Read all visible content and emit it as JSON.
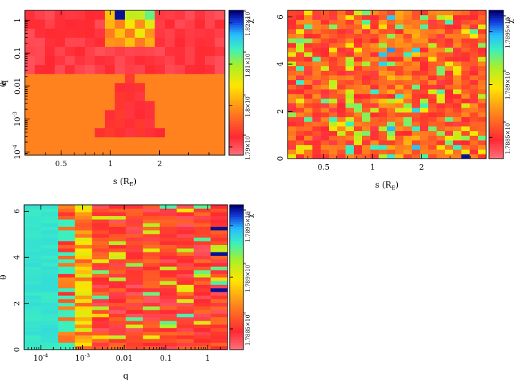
{
  "chart_data": [
    {
      "type": "heatmap",
      "id": "q_vs_s",
      "xlabel": "s (R_E)",
      "ylabel": "q",
      "xscale": "log",
      "yscale": "log",
      "xlim": [
        0.3,
        5.0
      ],
      "ylim": [
        8e-05,
        2.0
      ],
      "xticks": [
        {
          "v": 0.5,
          "label": "0.5"
        },
        {
          "v": 1,
          "label": "1"
        },
        {
          "v": 2,
          "label": "2"
        }
      ],
      "yticks": [
        {
          "v": 1,
          "label": "1"
        },
        {
          "v": 0.1,
          "label": "0.1"
        },
        {
          "v": 0.01,
          "label": "0.01"
        },
        {
          "v": 0.001,
          "label": "10^-3"
        },
        {
          "v": 0.0001,
          "label": "10^-4"
        }
      ],
      "cols": 20,
      "rows": 16,
      "colorbar": {
        "label": "χ²",
        "min": 178800000.0,
        "max": 182300000.0,
        "ticks": [
          {
            "v": 179000000.0,
            "label": "1.79×10^8"
          },
          {
            "v": 180000000.0,
            "label": "1.8×10^8"
          },
          {
            "v": 181000000.0,
            "label": "1.81×10^8"
          },
          {
            "v": 182000000.0,
            "label": "1.82×10^8"
          }
        ]
      }
    },
    {
      "type": "heatmap",
      "id": "theta_vs_s",
      "xlabel": "s (R_E)",
      "ylabel": "θ",
      "xscale": "log",
      "yscale": "linear",
      "xlim": [
        0.3,
        5.0
      ],
      "ylim": [
        0,
        6.28
      ],
      "xticks": [
        {
          "v": 0.5,
          "label": "0.5"
        },
        {
          "v": 1,
          "label": "1"
        },
        {
          "v": 2,
          "label": "2"
        }
      ],
      "yticks": [
        {
          "v": 0,
          "label": "0"
        },
        {
          "v": 2,
          "label": "2"
        },
        {
          "v": 4,
          "label": "4"
        },
        {
          "v": 6,
          "label": "6"
        }
      ],
      "cols": 24,
      "rows": 32,
      "colorbar": {
        "label": "χ²",
        "min": 178830000.0,
        "max": 178970000.0,
        "ticks": [
          {
            "v": 178850000.0,
            "label": "1.7885×10^8"
          },
          {
            "v": 178900000.0,
            "label": "1.789×10^8"
          },
          {
            "v": 178950000.0,
            "label": "1.7895×10^8"
          }
        ]
      }
    },
    {
      "type": "heatmap",
      "id": "theta_vs_q",
      "xlabel": "q",
      "ylabel": "θ",
      "xscale": "log",
      "yscale": "linear",
      "xlim": [
        4e-05,
        3.0
      ],
      "ylim": [
        0,
        6.28
      ],
      "xticks": [
        {
          "v": 0.0001,
          "label": "10^-4"
        },
        {
          "v": 0.001,
          "label": "10^-3"
        },
        {
          "v": 0.01,
          "label": "0.01"
        },
        {
          "v": 0.1,
          "label": "0.1"
        },
        {
          "v": 1,
          "label": "1"
        }
      ],
      "yticks": [
        {
          "v": 0,
          "label": "0"
        },
        {
          "v": 2,
          "label": "2"
        },
        {
          "v": 4,
          "label": "4"
        },
        {
          "v": 6,
          "label": "6"
        }
      ],
      "cols": 12,
      "rows": 40,
      "colorbar": {
        "label": "χ²",
        "min": 178830000.0,
        "max": 178970000.0,
        "ticks": [
          {
            "v": 178850000.0,
            "label": "1.7885×10^8"
          },
          {
            "v": 178900000.0,
            "label": "1.789×10^8"
          },
          {
            "v": 178950000.0,
            "label": "1.7895×10^8"
          }
        ]
      }
    }
  ]
}
